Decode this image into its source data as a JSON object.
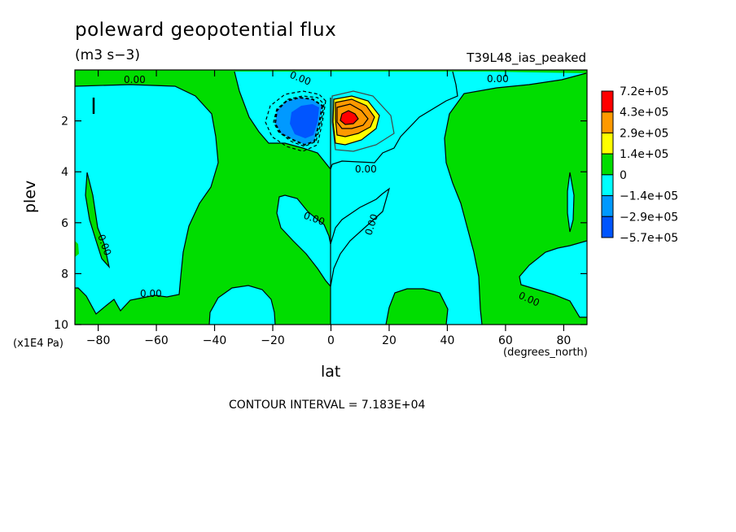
{
  "chart_data": {
    "type": "contour",
    "title": "poleward geopotential flux",
    "units": "(m3 s−3)",
    "run_name": "T39L48_ias_peaked",
    "xlabel": "lat",
    "xlabel_units": "(degrees_north)",
    "ylabel": "plev",
    "ylabel_units": "(x1E4 Pa)",
    "xlim": [
      -88,
      88
    ],
    "ylim": [
      0,
      10
    ],
    "y_inverted": true,
    "x_ticks": [
      -80,
      -60,
      -40,
      -20,
      0,
      20,
      40,
      60,
      80
    ],
    "y_ticks": [
      2,
      4,
      6,
      8,
      10
    ],
    "contour_interval_text": "CONTOUR INTERVAL = 7.183E+04",
    "contour_labels": [
      "0.00",
      "0.00",
      "0.00",
      "0.00",
      "0.00",
      "0.00",
      "0.00",
      "0.00",
      "0.00"
    ],
    "colorbar": {
      "labels": [
        "7.2e+05",
        "4.3e+05",
        "2.9e+05",
        "1.4e+05",
        "0",
        "−1.4e+05",
        "−2.9e+05",
        "−5.7e+05"
      ],
      "colors": [
        "#ff0000",
        "#ff9900",
        "#ffff00",
        "#00dd00",
        "#00ffff",
        "#0099ff",
        "#0055ff"
      ]
    },
    "features": [
      {
        "name": "negative-maximum",
        "lat": -8,
        "plev": 2.0,
        "value": -570000
      },
      {
        "name": "positive-maximum",
        "lat": 7,
        "plev": 2.0,
        "value": 720000
      }
    ]
  },
  "colors": {
    "positive_background": "#00dd00",
    "negative_background": "#00ffff"
  }
}
